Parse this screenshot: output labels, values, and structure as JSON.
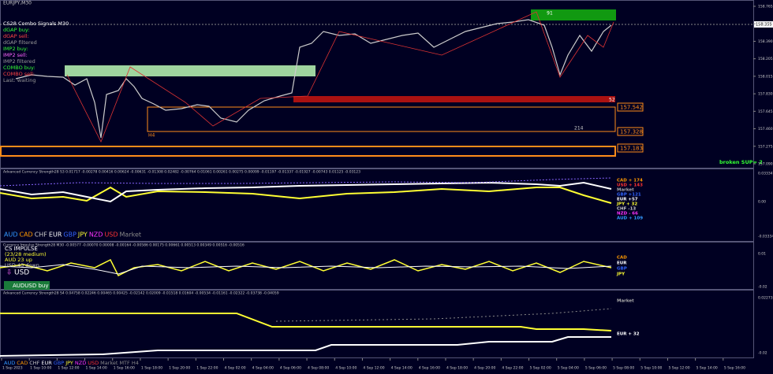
{
  "window_title": "EURJPY,M30",
  "main_panel": {
    "legend": [
      {
        "text": "CS28 Combo Signals  M30",
        "color": "#ffffff"
      },
      {
        "text": "dGAP buy:",
        "color": "#33ff33"
      },
      {
        "text": "dGAP sell:",
        "color": "#ff4444"
      },
      {
        "text": "dGAP filtered",
        "color": "#999999"
      },
      {
        "text": "IMP2 buy:",
        "color": "#33ff33"
      },
      {
        "text": "IMP2 sell:",
        "color": "#ff66ff"
      },
      {
        "text": "IMP2 filtered",
        "color": "#999999"
      },
      {
        "text": "COMBO buy:",
        "color": "#33ff33"
      },
      {
        "text": "COMBO sell:",
        "color": "#ff4444"
      },
      {
        "text": "Last: waiting",
        "color": "#999999"
      }
    ],
    "zone_labels": [
      "91",
      "52",
      "214",
      "H4"
    ],
    "levels": [
      "157.542",
      "157.328",
      "157.183"
    ],
    "status": "broken SUP= 2",
    "current_price": "158.355",
    "price_ticks": [
      "158.765",
      "158.575",
      "158.390",
      "158.205",
      "158.015",
      "157.830",
      "157.645",
      "157.460",
      "157.275",
      "157.090"
    ]
  },
  "strength_panel": {
    "header": "Advanced Currency Strength28 S3 0.01717 -0.00278 0.00416 0.00624 -0.00631 -0.01308 0.02482 -0.00764 0.01061 0.00261 0.00275 0.00099 -0.01197 -0.01337 -0.01927 -0.00743 0.01125 -0.03123",
    "right_labels": [
      {
        "text": "CAD + 174",
        "color": "#ff9900"
      },
      {
        "text": "USD + 143",
        "color": "#ff3333"
      },
      {
        "text": "Market",
        "color": "#aaaaaa"
      },
      {
        "text": "GBP +121",
        "color": "#3366ff"
      },
      {
        "text": "EUR +57",
        "color": "#ffffff"
      },
      {
        "text": "JPY + 32",
        "color": "#ffff33"
      },
      {
        "text": "CHF -13",
        "color": "#cccccc"
      },
      {
        "text": "NZD - 66",
        "color": "#ff33ff"
      },
      {
        "text": "AUD + 109",
        "color": "#3399ff"
      }
    ],
    "currencies": [
      {
        "name": "AUD",
        "color": "#3399ff"
      },
      {
        "name": "CAD",
        "color": "#ff9900"
      },
      {
        "name": "CHF",
        "color": "#cccccc"
      },
      {
        "name": "EUR",
        "color": "#ffffff"
      },
      {
        "name": "GBP",
        "color": "#3366ff"
      },
      {
        "name": "JPY",
        "color": "#ffff33"
      },
      {
        "name": "NZD",
        "color": "#ff33ff"
      },
      {
        "name": "USD",
        "color": "#ff3333"
      },
      {
        "name": "Market",
        "color": "#888888"
      }
    ],
    "ticks": [
      "0.03334",
      "0.00",
      "-0.03334"
    ]
  },
  "impulse_panel": {
    "header": "Currency Impulse Strength28 M30 -0.00577 -0.00070 0.00008 -0.00164 -0.00586 0.00175 0.00661 0.00513 0.00349 0.00516 -0.00516",
    "title": "CS IMPULSE",
    "strength": "(23/28 medium)",
    "up": "AUD 23 up",
    "down": "USD 43 down",
    "arrow_currency": "USD",
    "signal": "AUDUSD buy",
    "right_labels": [
      {
        "text": "CAD",
        "color": "#ff9900"
      },
      {
        "text": "EUR",
        "color": "#ffffff"
      },
      {
        "text": "GBP",
        "color": "#3366ff"
      },
      {
        "text": "JPY",
        "color": "#ffff33"
      }
    ],
    "ticks": [
      "0.01",
      "-0.02"
    ]
  },
  "strength_panel_2": {
    "header": "Advanced Currency Strength28 S4 0.04758 0.02246 0.00465 0.00425 -0.02142 0.02009 -0.01518 0.01604 -0.00534 -0.01161 -0.02322 -0.03738 -0.04059",
    "right_labels": [
      {
        "text": "Market",
        "color": "#aaaaaa"
      },
      {
        "text": "EUR + 32",
        "color": "#ffffff"
      }
    ],
    "currencies": [
      {
        "name": "AUD",
        "color": "#3399ff"
      },
      {
        "name": "CAD",
        "color": "#ff9900"
      },
      {
        "name": "CHF",
        "color": "#cccccc"
      },
      {
        "name": "EUR",
        "color": "#ffffff"
      },
      {
        "name": "GBP",
        "color": "#3366ff"
      },
      {
        "name": "JPY",
        "color": "#ffff33"
      },
      {
        "name": "NZD",
        "color": "#ff33ff"
      },
      {
        "name": "USD",
        "color": "#ff3333"
      },
      {
        "name": "Market",
        "color": "#888888"
      },
      {
        "name": "MTF H4",
        "color": "#888888"
      }
    ],
    "ticks": [
      "0.02273",
      "-0.02"
    ]
  },
  "time_axis": [
    "1 Sep 2023",
    "1 Sep 10:00",
    "1 Sep 12:00",
    "1 Sep 14:00",
    "1 Sep 16:00",
    "1 Sep 18:00",
    "1 Sep 20:00",
    "1 Sep 22:00",
    "4 Sep 02:00",
    "4 Sep 04:00",
    "4 Sep 06:00",
    "4 Sep 08:00",
    "4 Sep 10:00",
    "4 Sep 12:00",
    "4 Sep 14:00",
    "4 Sep 16:00",
    "4 Sep 18:00",
    "4 Sep 20:00",
    "4 Sep 22:00",
    "5 Sep 02:00",
    "5 Sep 04:00",
    "5 Sep 06:00",
    "5 Sep 08:00",
    "5 Sep 10:00",
    "5 Sep 12:00",
    "5 Sep 14:00",
    "5 Sep 16:00"
  ]
}
